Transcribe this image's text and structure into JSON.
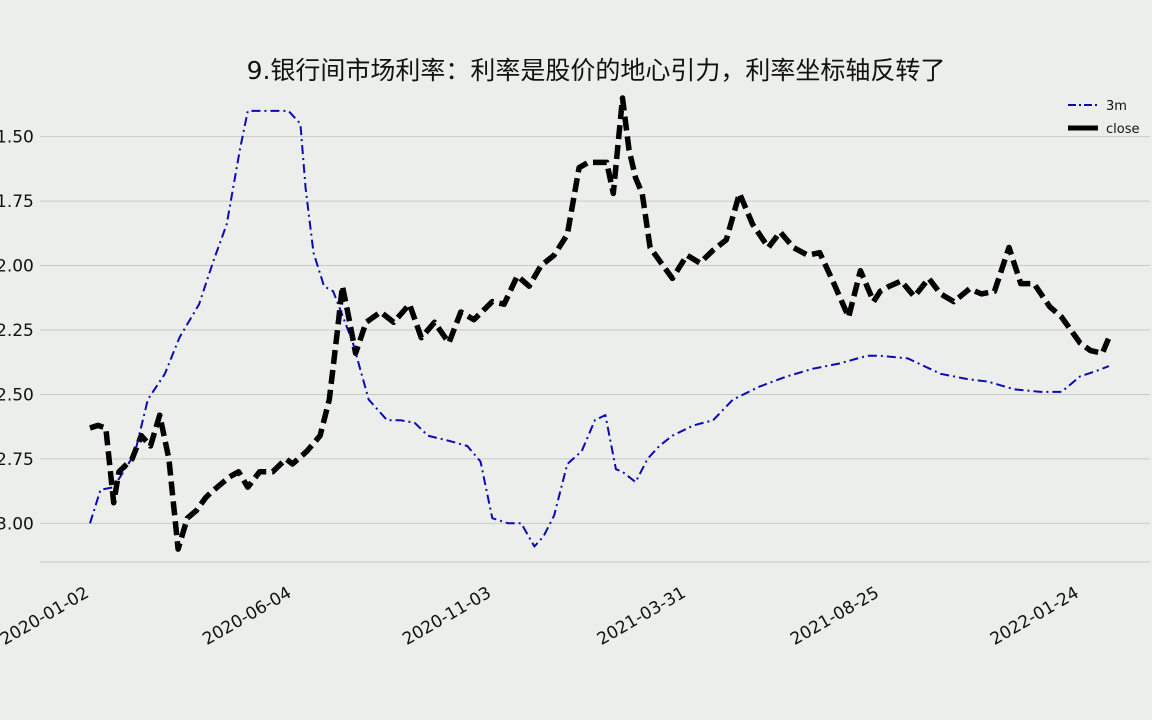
{
  "chart_data": {
    "type": "line",
    "title": "9.银行间市场利率：利率是股价的地心引力，利率坐标轴反转了",
    "xlabel": "",
    "ylabel": "",
    "y_axis_inverted": true,
    "ylim": [
      3.15,
      1.35
    ],
    "yticks": [
      1.5,
      1.75,
      2.0,
      2.25,
      2.5,
      2.75,
      3.0
    ],
    "ytick_labels": [
      "1.50",
      "1.75",
      "2.00",
      "2.25",
      "2.50",
      "2.75",
      "3.00"
    ],
    "xlim": [
      "2020-01-02",
      "2022-01-24"
    ],
    "xticks": [
      "2020-01-02",
      "2020-06-04",
      "2020-11-03",
      "2021-03-31",
      "2021-08-25",
      "2022-01-24"
    ],
    "grid": "horizontal",
    "legend_position": "top-right",
    "series": [
      {
        "name": "3m",
        "line_style": "dash-dot",
        "color": "#0a0ab4",
        "x": [
          "2020-01-02",
          "2020-01-10",
          "2020-01-20",
          "2020-02-05",
          "2020-02-15",
          "2020-02-28",
          "2020-03-10",
          "2020-03-25",
          "2020-04-05",
          "2020-04-15",
          "2020-04-25",
          "2020-05-01",
          "2020-05-15",
          "2020-06-01",
          "2020-06-10",
          "2020-06-14",
          "2020-06-20",
          "2020-06-28",
          "2020-07-05",
          "2020-07-20",
          "2020-08-01",
          "2020-08-15",
          "2020-08-25",
          "2020-09-05",
          "2020-09-15",
          "2020-10-01",
          "2020-10-15",
          "2020-10-25",
          "2020-11-03",
          "2020-11-15",
          "2020-11-25",
          "2020-12-05",
          "2020-12-12",
          "2020-12-20",
          "2020-12-30",
          "2021-01-10",
          "2021-01-20",
          "2021-01-28",
          "2021-02-05",
          "2021-02-10",
          "2021-02-20",
          "2021-03-01",
          "2021-03-10",
          "2021-03-20",
          "2021-04-05",
          "2021-04-20",
          "2021-05-05",
          "2021-05-25",
          "2021-06-15",
          "2021-07-05",
          "2021-07-25",
          "2021-08-15",
          "2021-08-25",
          "2021-09-15",
          "2021-10-10",
          "2021-10-20",
          "2021-10-30",
          "2021-11-15",
          "2021-12-05",
          "2021-12-25",
          "2022-01-10",
          "2022-01-24",
          "2022-02-05",
          "2022-02-15"
        ],
        "values": [
          3.0,
          2.87,
          2.86,
          2.73,
          2.52,
          2.42,
          2.28,
          2.15,
          1.98,
          1.84,
          1.55,
          1.4,
          1.4,
          1.4,
          1.45,
          1.7,
          1.95,
          2.08,
          2.1,
          2.3,
          2.52,
          2.6,
          2.6,
          2.61,
          2.66,
          2.68,
          2.7,
          2.76,
          2.98,
          3.0,
          3.0,
          3.09,
          3.05,
          2.97,
          2.77,
          2.72,
          2.6,
          2.58,
          2.79,
          2.8,
          2.84,
          2.75,
          2.7,
          2.66,
          2.62,
          2.6,
          2.52,
          2.47,
          2.43,
          2.4,
          2.38,
          2.35,
          2.35,
          2.36,
          2.42,
          2.43,
          2.44,
          2.45,
          2.48,
          2.49,
          2.49,
          2.43,
          2.41,
          2.39
        ]
      },
      {
        "name": "close",
        "line_style": "dash",
        "color": "#000000",
        "x": [
          "2020-01-02",
          "2020-01-08",
          "2020-01-14",
          "2020-01-20",
          "2020-01-24",
          "2020-02-03",
          "2020-02-10",
          "2020-02-17",
          "2020-02-24",
          "2020-03-02",
          "2020-03-09",
          "2020-03-16",
          "2020-03-23",
          "2020-03-30",
          "2020-04-03",
          "2020-04-10",
          "2020-04-17",
          "2020-04-24",
          "2020-05-01",
          "2020-05-10",
          "2020-05-20",
          "2020-05-30",
          "2020-06-04",
          "2020-06-15",
          "2020-06-25",
          "2020-07-02",
          "2020-07-08",
          "2020-07-12",
          "2020-07-16",
          "2020-07-22",
          "2020-07-30",
          "2020-08-10",
          "2020-08-20",
          "2020-09-01",
          "2020-09-10",
          "2020-09-20",
          "2020-10-01",
          "2020-10-10",
          "2020-10-20",
          "2020-11-03",
          "2020-11-12",
          "2020-11-22",
          "2020-12-01",
          "2020-12-10",
          "2020-12-20",
          "2020-12-30",
          "2021-01-08",
          "2021-01-15",
          "2021-01-22",
          "2021-01-29",
          "2021-02-03",
          "2021-02-10",
          "2021-02-15",
          "2021-02-20",
          "2021-02-25",
          "2021-03-03",
          "2021-03-10",
          "2021-03-20",
          "2021-03-31",
          "2021-04-10",
          "2021-04-20",
          "2021-04-30",
          "2021-05-10",
          "2021-05-20",
          "2021-06-01",
          "2021-06-10",
          "2021-06-20",
          "2021-07-01",
          "2021-07-10",
          "2021-07-20",
          "2021-08-01",
          "2021-08-10",
          "2021-08-20",
          "2021-08-25",
          "2021-09-01",
          "2021-09-10",
          "2021-09-20",
          "2021-10-01",
          "2021-10-10",
          "2021-10-20",
          "2021-11-01",
          "2021-11-10",
          "2021-11-20",
          "2021-12-01",
          "2021-12-10",
          "2021-12-20",
          "2022-01-01",
          "2022-01-10",
          "2022-01-24",
          "2022-02-01",
          "2022-02-10",
          "2022-02-15"
        ],
        "values": [
          2.63,
          2.62,
          2.63,
          2.92,
          2.8,
          2.75,
          2.66,
          2.7,
          2.58,
          2.75,
          3.1,
          2.98,
          2.95,
          2.9,
          2.88,
          2.85,
          2.82,
          2.8,
          2.86,
          2.8,
          2.8,
          2.75,
          2.77,
          2.72,
          2.66,
          2.52,
          2.26,
          2.08,
          2.18,
          2.34,
          2.22,
          2.18,
          2.22,
          2.15,
          2.28,
          2.22,
          2.3,
          2.18,
          2.21,
          2.14,
          2.15,
          2.04,
          2.08,
          2.0,
          1.96,
          1.88,
          1.62,
          1.6,
          1.6,
          1.6,
          1.72,
          1.35,
          1.55,
          1.66,
          1.72,
          1.93,
          1.98,
          2.05,
          1.96,
          1.99,
          1.94,
          1.9,
          1.72,
          1.84,
          1.93,
          1.87,
          1.93,
          1.96,
          1.95,
          2.06,
          2.2,
          2.02,
          2.14,
          2.1,
          2.08,
          2.06,
          2.12,
          2.05,
          2.11,
          2.14,
          2.09,
          2.11,
          2.1,
          1.93,
          2.07,
          2.07,
          2.16,
          2.2,
          2.3,
          2.33,
          2.34,
          2.28
        ]
      }
    ]
  }
}
